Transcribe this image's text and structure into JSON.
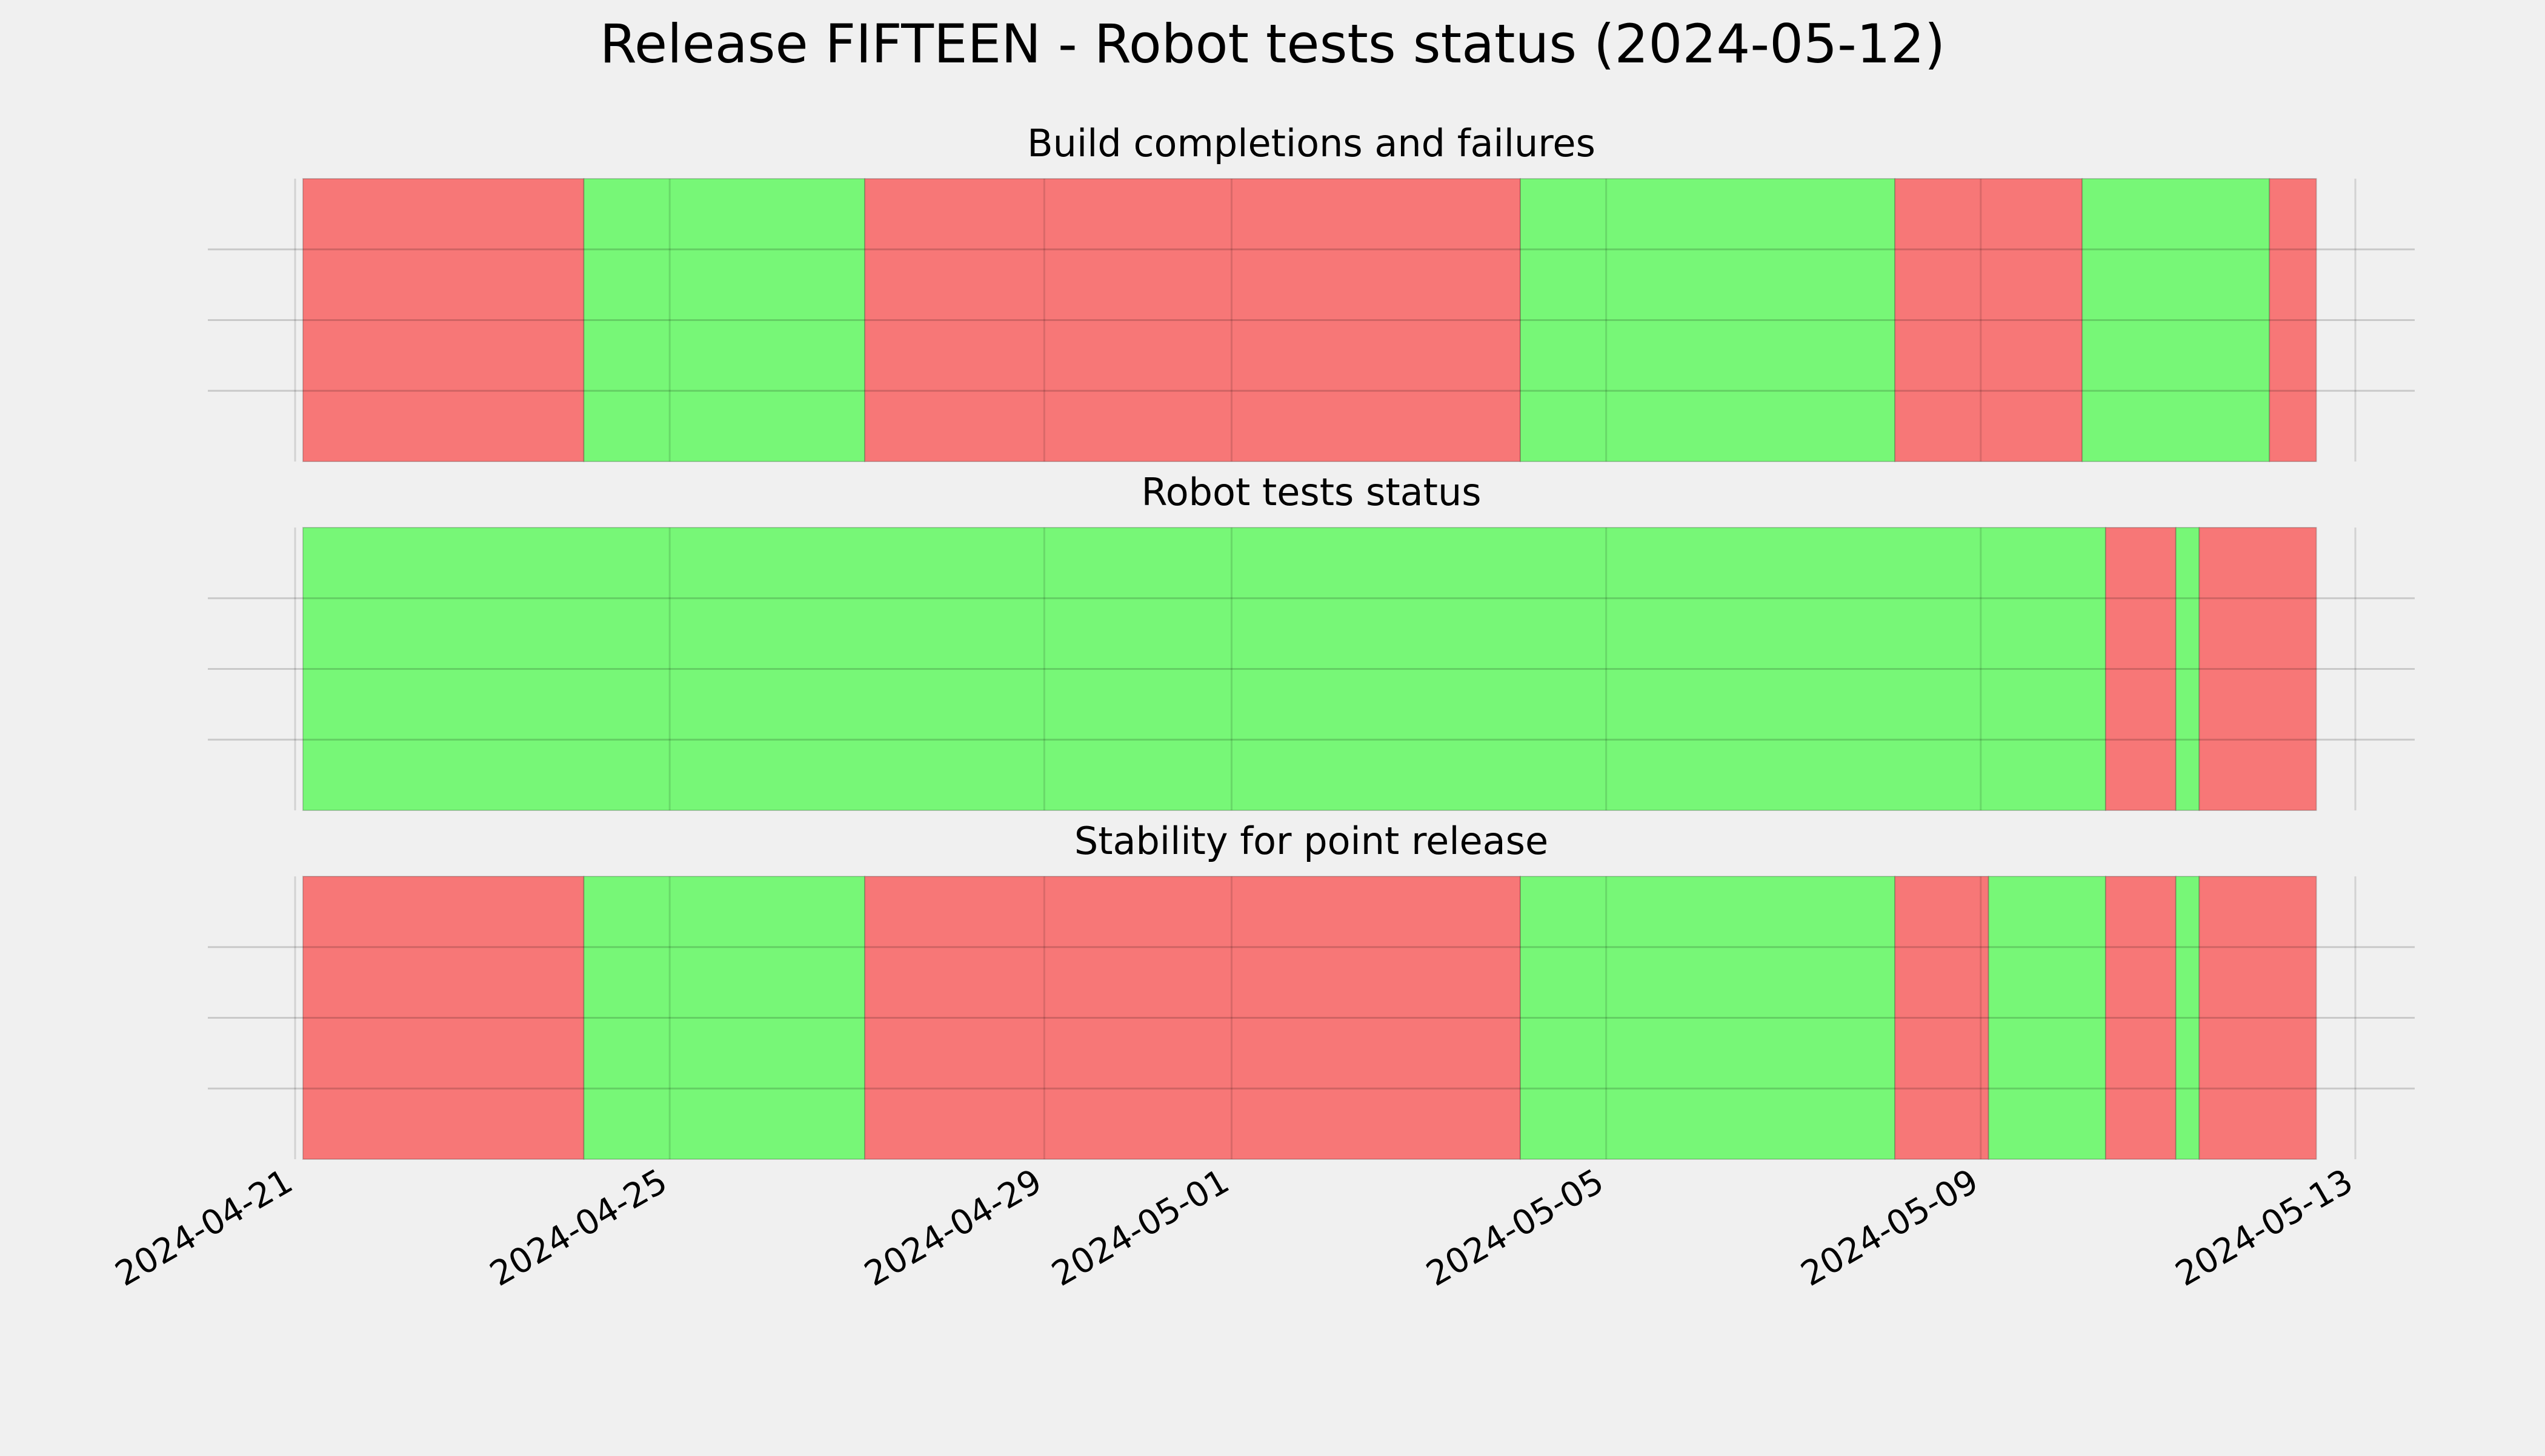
{
  "title": "Release FIFTEEN - Robot tests status (2024-05-12)",
  "colors": {
    "pass": "#77f777",
    "fail": "#f77777",
    "background": "#f0f0f0",
    "grid": "#cbcbcb",
    "text": "#000000"
  },
  "chart_data": {
    "type": "timeline",
    "x_axis": {
      "type": "date",
      "range": [
        "2024-04-21",
        "2024-05-13"
      ],
      "ticks": [
        "2024-04-21",
        "2024-04-25",
        "2024-04-29",
        "2024-05-01",
        "2024-05-05",
        "2024-05-09",
        "2024-05-13"
      ],
      "tick_label_rotation": 30
    },
    "grid": true,
    "panels": [
      {
        "title": "Build completions and failures",
        "segments": [
          {
            "start": "2024-04-21T02:00",
            "end": "2024-04-24T02:00",
            "status": "fail"
          },
          {
            "start": "2024-04-24T02:00",
            "end": "2024-04-27T02:00",
            "status": "pass"
          },
          {
            "start": "2024-04-27T02:00",
            "end": "2024-05-04T02:00",
            "status": "fail"
          },
          {
            "start": "2024-05-04T02:00",
            "end": "2024-05-08T02:00",
            "status": "pass"
          },
          {
            "start": "2024-05-08T02:00",
            "end": "2024-05-10T02:00",
            "status": "fail"
          },
          {
            "start": "2024-05-10T02:00",
            "end": "2024-05-12T02:00",
            "status": "pass"
          },
          {
            "start": "2024-05-12T02:00",
            "end": "2024-05-12T14:00",
            "status": "fail"
          }
        ]
      },
      {
        "title": "Robot tests status",
        "segments": [
          {
            "start": "2024-04-21T02:00",
            "end": "2024-05-10T08:00",
            "status": "pass"
          },
          {
            "start": "2024-05-10T08:00",
            "end": "2024-05-11T02:00",
            "status": "fail"
          },
          {
            "start": "2024-05-11T02:00",
            "end": "2024-05-11T08:00",
            "status": "pass"
          },
          {
            "start": "2024-05-11T08:00",
            "end": "2024-05-12T14:00",
            "status": "fail"
          }
        ]
      },
      {
        "title": "Stability for point release",
        "segments": [
          {
            "start": "2024-04-21T02:00",
            "end": "2024-04-24T02:00",
            "status": "fail"
          },
          {
            "start": "2024-04-24T02:00",
            "end": "2024-04-27T02:00",
            "status": "pass"
          },
          {
            "start": "2024-04-27T02:00",
            "end": "2024-05-04T02:00",
            "status": "fail"
          },
          {
            "start": "2024-05-04T02:00",
            "end": "2024-05-08T02:00",
            "status": "pass"
          },
          {
            "start": "2024-05-08T02:00",
            "end": "2024-05-09T02:00",
            "status": "fail"
          },
          {
            "start": "2024-05-09T02:00",
            "end": "2024-05-10T08:00",
            "status": "pass"
          },
          {
            "start": "2024-05-10T08:00",
            "end": "2024-05-11T02:00",
            "status": "fail"
          },
          {
            "start": "2024-05-11T02:00",
            "end": "2024-05-11T08:00",
            "status": "pass"
          },
          {
            "start": "2024-05-11T08:00",
            "end": "2024-05-12T14:00",
            "status": "fail"
          }
        ]
      }
    ]
  }
}
